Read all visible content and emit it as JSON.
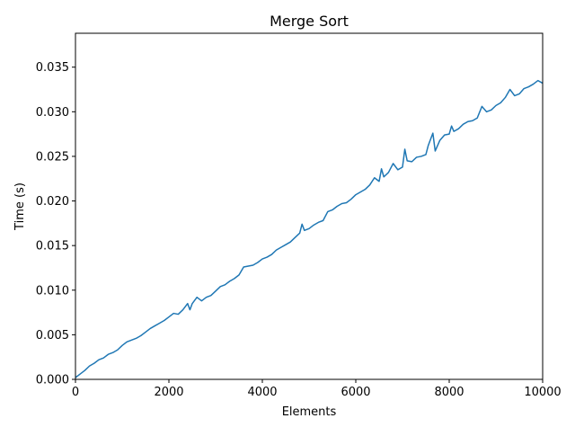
{
  "chart_data": {
    "type": "line",
    "title": "Merge Sort",
    "xlabel": "Elements",
    "ylabel": "Time (s)",
    "xlim": [
      0,
      10000
    ],
    "ylim": [
      0,
      0.0388
    ],
    "xticks": [
      0,
      2000,
      4000,
      6000,
      8000,
      10000
    ],
    "xtick_labels": [
      "0",
      "2000",
      "4000",
      "6000",
      "8000",
      "10000"
    ],
    "yticks": [
      0,
      0.005,
      0.01,
      0.015,
      0.02,
      0.025,
      0.03,
      0.035
    ],
    "ytick_labels": [
      "0.000",
      "0.005",
      "0.010",
      "0.015",
      "0.020",
      "0.025",
      "0.030",
      "0.035"
    ],
    "grid": false,
    "line_color": "#1f77b4",
    "series": [
      {
        "x": [
          0,
          100,
          200,
          300,
          400,
          500,
          600,
          700,
          800,
          900,
          1000,
          1100,
          1200,
          1300,
          1400,
          1500,
          1600,
          1700,
          1800,
          1900,
          2000,
          2100,
          2200,
          2300,
          2400,
          2450,
          2500,
          2600,
          2700,
          2800,
          2900,
          3000,
          3100,
          3200,
          3300,
          3400,
          3500,
          3600,
          3700,
          3800,
          3900,
          4000,
          4100,
          4200,
          4300,
          4400,
          4500,
          4600,
          4700,
          4800,
          4850,
          4900,
          5000,
          5100,
          5200,
          5300,
          5400,
          5500,
          5600,
          5700,
          5800,
          5900,
          6000,
          6100,
          6200,
          6300,
          6400,
          6500,
          6550,
          6600,
          6700,
          6800,
          6900,
          7000,
          7050,
          7100,
          7200,
          7300,
          7400,
          7500,
          7550,
          7650,
          7700,
          7800,
          7900,
          8000,
          8050,
          8100,
          8200,
          8300,
          8400,
          8500,
          8600,
          8700,
          8800,
          8900,
          9000,
          9100,
          9200,
          9300,
          9400,
          9500,
          9600,
          9700,
          9800,
          9900,
          10000
        ],
        "values": [
          0.0002,
          0.0006,
          0.001,
          0.0015,
          0.0018,
          0.0022,
          0.0024,
          0.0028,
          0.003,
          0.0033,
          0.0038,
          0.0042,
          0.0044,
          0.0046,
          0.0049,
          0.0053,
          0.0057,
          0.006,
          0.0063,
          0.0066,
          0.007,
          0.0074,
          0.0073,
          0.0078,
          0.0085,
          0.0078,
          0.0085,
          0.0092,
          0.0088,
          0.0092,
          0.0094,
          0.0099,
          0.0104,
          0.0106,
          0.011,
          0.0113,
          0.0117,
          0.0126,
          0.0127,
          0.0128,
          0.0131,
          0.0135,
          0.0137,
          0.014,
          0.0145,
          0.0148,
          0.0151,
          0.0154,
          0.0159,
          0.0164,
          0.0174,
          0.0167,
          0.0169,
          0.0173,
          0.0176,
          0.0178,
          0.0188,
          0.019,
          0.0194,
          0.0197,
          0.0198,
          0.0202,
          0.0207,
          0.021,
          0.0213,
          0.0218,
          0.0226,
          0.0222,
          0.0236,
          0.0227,
          0.0232,
          0.0242,
          0.0235,
          0.0238,
          0.0258,
          0.0245,
          0.0244,
          0.0249,
          0.025,
          0.0252,
          0.0262,
          0.0276,
          0.0256,
          0.0268,
          0.0274,
          0.0275,
          0.0284,
          0.0278,
          0.0281,
          0.0286,
          0.0289,
          0.029,
          0.0293,
          0.0306,
          0.03,
          0.0302,
          0.0307,
          0.031,
          0.0316,
          0.0325,
          0.0318,
          0.032,
          0.0326,
          0.0328,
          0.0331,
          0.0335,
          0.0332
        ]
      }
    ]
  }
}
